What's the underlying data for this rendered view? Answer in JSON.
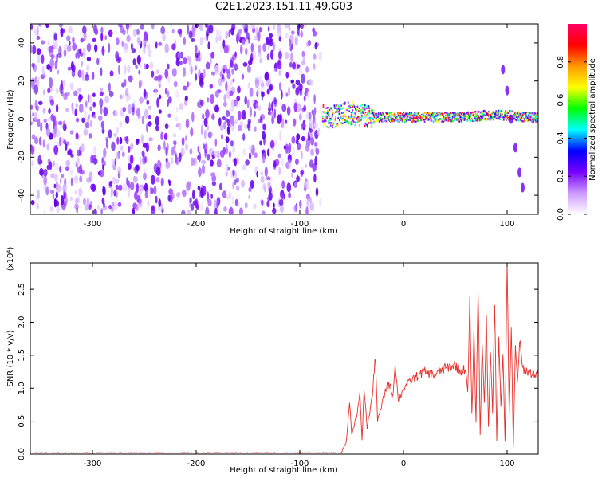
{
  "title": "C2E1.2023.151.11.49.G03",
  "chart_data": [
    {
      "type": "heatmap",
      "xlabel": "Height of straight line (km)",
      "ylabel": "Frequency (Hz)",
      "xlim": [
        -360,
        130
      ],
      "ylim": [
        -50,
        50
      ],
      "xticks": [
        -300,
        -200,
        -100,
        0,
        100
      ],
      "xtick_labels": [
        "-300",
        "-200",
        "-100",
        "0",
        "100"
      ],
      "yticks": [
        -40,
        -20,
        0,
        20,
        40
      ],
      "ytick_labels": [
        "-40",
        "-20",
        "0",
        "20",
        "40"
      ],
      "colorbar": {
        "label": "Normalized spectral amplitude",
        "range": [
          0,
          1
        ],
        "ticks": [
          0.0,
          0.2,
          0.4,
          0.6,
          0.8
        ],
        "tick_labels": [
          "0.0",
          "0.2",
          "0.4",
          "0.6",
          "0.8"
        ],
        "colors": [
          "#ffffff",
          "#cc99ff",
          "#7700ff",
          "#0000ff",
          "#00ffff",
          "#00ff00",
          "#ffff00",
          "#ff9900",
          "#ff0000",
          "#ff0066"
        ]
      },
      "noise_region_x": [
        -360,
        -80
      ],
      "signal_band": [
        {
          "x": -78,
          "f": 2
        },
        {
          "x": -70,
          "f": 1
        },
        {
          "x": -60,
          "f": 3
        },
        {
          "x": -50,
          "f": 3
        },
        {
          "x": -40,
          "f": 2
        },
        {
          "x": -30,
          "f": 1
        },
        {
          "x": -20,
          "f": 1
        },
        {
          "x": -10,
          "f": 1
        },
        {
          "x": 0,
          "f": 1
        },
        {
          "x": 20,
          "f": 1
        },
        {
          "x": 40,
          "f": 1
        },
        {
          "x": 60,
          "f": 1
        },
        {
          "x": 80,
          "f": 2
        },
        {
          "x": 100,
          "f": 2
        },
        {
          "x": 120,
          "f": 1
        },
        {
          "x": 130,
          "f": 1
        }
      ],
      "secondary_trace": [
        {
          "x": 96,
          "f": 26
        },
        {
          "x": 100,
          "f": 15
        },
        {
          "x": 104,
          "f": 0
        },
        {
          "x": 108,
          "f": -15
        },
        {
          "x": 112,
          "f": -28
        },
        {
          "x": 115,
          "f": -36
        }
      ]
    },
    {
      "type": "line",
      "xlabel": "Height of straight line (km)",
      "ylabel": "SNR (10 * v/v)",
      "yscale_label": "(x10⁴)",
      "xlim": [
        -360,
        130
      ],
      "ylim": [
        0,
        2.9
      ],
      "xticks": [
        -300,
        -200,
        -100,
        0,
        100
      ],
      "xtick_labels": [
        "-300",
        "-200",
        "-100",
        "0",
        "100"
      ],
      "yticks": [
        0.0,
        0.5,
        1.0,
        1.5,
        2.0,
        2.5
      ],
      "ytick_labels": [
        "0.0",
        "0.5",
        "1.0",
        "1.5",
        "2.0",
        "2.5"
      ],
      "series": [
        {
          "color": "#e8302b",
          "points": [
            [
              -360,
              0.02
            ],
            [
              -300,
              0.02
            ],
            [
              -200,
              0.02
            ],
            [
              -100,
              0.02
            ],
            [
              -60,
              0.02
            ],
            [
              -55,
              0.2
            ],
            [
              -52,
              0.8
            ],
            [
              -50,
              0.3
            ],
            [
              -45,
              0.6
            ],
            [
              -42,
              0.9
            ],
            [
              -40,
              0.2
            ],
            [
              -38,
              1.0
            ],
            [
              -35,
              0.4
            ],
            [
              -30,
              0.9
            ],
            [
              -27,
              1.5
            ],
            [
              -25,
              0.5
            ],
            [
              -20,
              0.8
            ],
            [
              -15,
              1.1
            ],
            [
              -10,
              0.9
            ],
            [
              -8,
              1.4
            ],
            [
              -5,
              0.8
            ],
            [
              0,
              1.0
            ],
            [
              10,
              1.15
            ],
            [
              20,
              1.25
            ],
            [
              30,
              1.2
            ],
            [
              40,
              1.3
            ],
            [
              50,
              1.35
            ],
            [
              55,
              1.25
            ],
            [
              60,
              1.3
            ],
            [
              62,
              0.9
            ],
            [
              64,
              2.3
            ],
            [
              66,
              0.6
            ],
            [
              68,
              1.8
            ],
            [
              70,
              0.5
            ],
            [
              72,
              2.6
            ],
            [
              74,
              0.3
            ],
            [
              76,
              1.7
            ],
            [
              78,
              0.8
            ],
            [
              80,
              2.0
            ],
            [
              82,
              0.4
            ],
            [
              84,
              1.6
            ],
            [
              86,
              0.6
            ],
            [
              88,
              2.4
            ],
            [
              90,
              0.2
            ],
            [
              92,
              1.8
            ],
            [
              94,
              0.7
            ],
            [
              96,
              1.5
            ],
            [
              98,
              0.2
            ],
            [
              100,
              2.9
            ],
            [
              102,
              0.6
            ],
            [
              104,
              1.9
            ],
            [
              106,
              0.1
            ],
            [
              108,
              1.6
            ],
            [
              110,
              1.1
            ],
            [
              112,
              1.7
            ],
            [
              115,
              1.3
            ],
            [
              120,
              1.25
            ],
            [
              125,
              1.22
            ],
            [
              130,
              1.2
            ]
          ]
        }
      ]
    }
  ]
}
